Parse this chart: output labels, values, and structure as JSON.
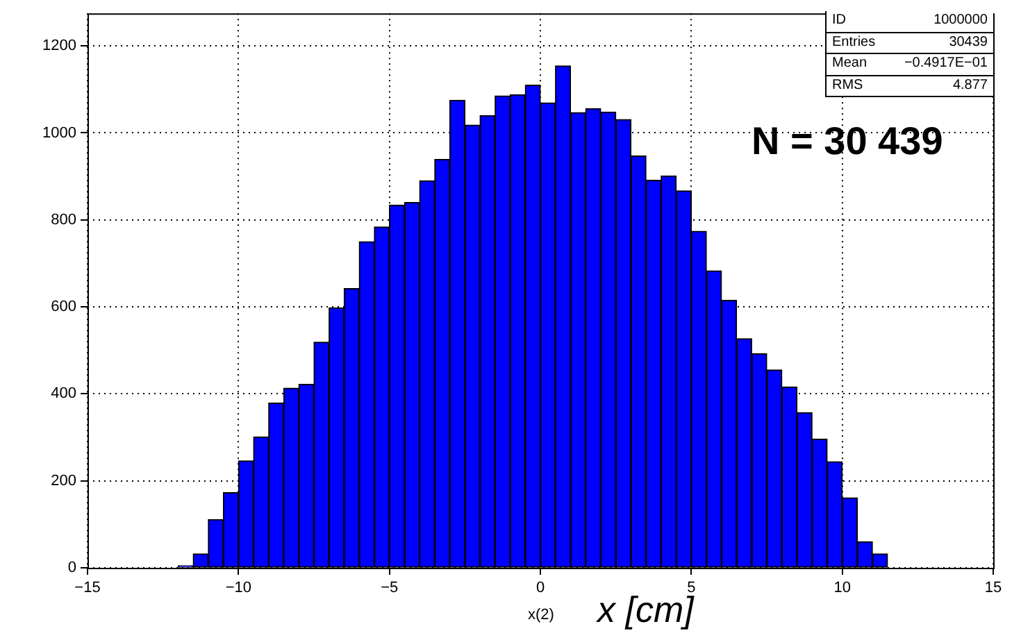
{
  "chart_data": {
    "type": "histogram",
    "xlabel": "x [cm]",
    "annotations": [
      "ID 1000000",
      "Entries 30439",
      "Mean −0.4917E−01",
      "RMS 4.877",
      "N = 30 439",
      "x(2)"
    ],
    "bins": [
      -12,
      -11.5,
      -11,
      -10.5,
      -10,
      -9.5,
      -9,
      -8.5,
      -8,
      -7.5,
      -7,
      -6.5,
      -6,
      -5.5,
      -5,
      -4.5,
      -4,
      -3.5,
      -3,
      -2.5,
      -2,
      -1.5,
      -1,
      -0.5,
      0,
      0.5,
      1,
      1.5,
      2,
      2.5,
      3,
      3.5,
      4,
      4.5,
      5,
      5.5,
      6,
      6.5,
      7,
      7.5,
      8,
      8.5,
      9,
      9.5,
      10,
      10.5,
      11,
      11.5
    ],
    "values": [
      5,
      32,
      111,
      173,
      246,
      301,
      379,
      413,
      422,
      519,
      598,
      642,
      750,
      784,
      834,
      840,
      890,
      939,
      1075,
      1018,
      1040,
      1085,
      1088,
      1110,
      1069,
      1154,
      1047,
      1056,
      1048,
      1031,
      947,
      891,
      901,
      867,
      774,
      683,
      615,
      527,
      492,
      455,
      416,
      357,
      296,
      244,
      161,
      60,
      32
    ],
    "color": "#0000ff",
    "xlim": [
      -15,
      15
    ],
    "xticks": [
      -15,
      -10,
      -5,
      0,
      5,
      10,
      15
    ],
    "ylim": [
      0,
      1275
    ],
    "yticks": [
      0,
      200,
      400,
      600,
      800,
      1000,
      1200
    ],
    "grid": true
  }
}
